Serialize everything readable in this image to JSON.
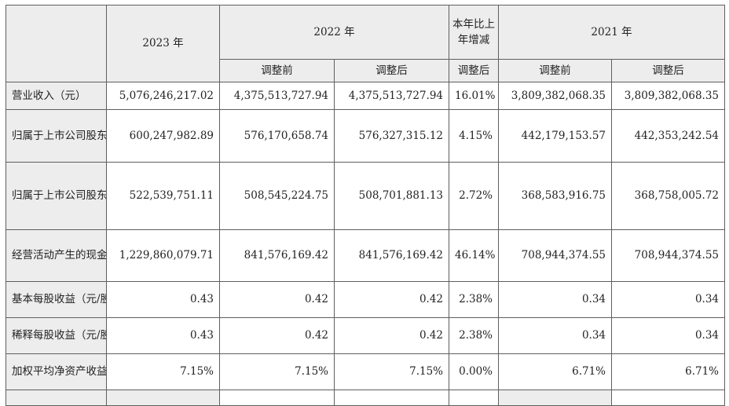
{
  "table": {
    "headers": {
      "y2023": "2023 年",
      "y2022": "2022 年",
      "yoy": "本年比上年增减",
      "y2021": "2021 年",
      "before_2022": "调整前",
      "after_2022": "调整后",
      "after_yoy": "调整后",
      "before_2021": "调整前",
      "after_2021": "调整后"
    },
    "rows": [
      {
        "label": "营业收入（元）",
        "v2023": "5,076,246,217.02",
        "v2022_before": "4,375,513,727.94",
        "v2022_after": "4,375,513,727.94",
        "yoy": "16.01%",
        "v2021_before": "3,809,382,068.35",
        "v2021_after": "3,809,382,068.35"
      },
      {
        "label": "归属于上市公司股东的净利润（元）",
        "v2023": "600,247,982.89",
        "v2022_before": "576,170,658.74",
        "v2022_after": "576,327,315.12",
        "yoy": "4.15%",
        "v2021_before": "442,179,153.57",
        "v2021_after": "442,353,242.54"
      },
      {
        "label": "归属于上市公司股东的扣除非经常性损益的净利润（元）",
        "v2023": "522,539,751.11",
        "v2022_before": "508,545,224.75",
        "v2022_after": "508,701,881.13",
        "yoy": "2.72%",
        "v2021_before": "368,583,916.75",
        "v2021_after": "368,758,005.72"
      },
      {
        "label": "经营活动产生的现金流量净额（元）",
        "v2023": "1,229,860,079.71",
        "v2022_before": "841,576,169.42",
        "v2022_after": "841,576,169.42",
        "yoy": "46.14%",
        "v2021_before": "708,944,374.55",
        "v2021_after": "708,944,374.55"
      },
      {
        "label": "基本每股收益（元/股）",
        "v2023": "0.43",
        "v2022_before": "0.42",
        "v2022_after": "0.42",
        "yoy": "2.38%",
        "v2021_before": "0.34",
        "v2021_after": "0.34"
      },
      {
        "label": "稀释每股收益（元/股）",
        "v2023": "0.43",
        "v2022_before": "0.42",
        "v2022_after": "0.42",
        "yoy": "2.38%",
        "v2021_before": "0.34",
        "v2021_after": "0.34"
      },
      {
        "label": "加权平均净资产收益率",
        "v2023": "7.15%",
        "v2022_before": "7.15%",
        "v2022_after": "7.15%",
        "yoy": "0.00%",
        "v2021_before": "6.71%",
        "v2021_after": "6.71%"
      }
    ]
  }
}
